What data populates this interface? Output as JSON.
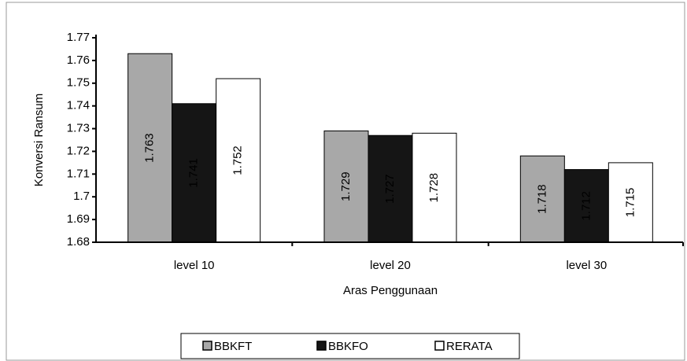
{
  "chart_data": {
    "type": "bar",
    "categories": [
      "level 10",
      "level 20",
      "level 30"
    ],
    "series": [
      {
        "name": "BBKFT",
        "color": "#a8a8a8",
        "values": [
          1.763,
          1.729,
          1.718
        ]
      },
      {
        "name": "BBKFO",
        "color": "#151515",
        "values": [
          1.741,
          1.727,
          1.712
        ]
      },
      {
        "name": "RERATA",
        "color": "#ffffff",
        "values": [
          1.752,
          1.728,
          1.715
        ]
      }
    ],
    "ylim": [
      1.68,
      1.77
    ],
    "yticks": [
      1.68,
      1.69,
      1.7,
      1.71,
      1.72,
      1.73,
      1.74,
      1.75,
      1.76,
      1.77
    ],
    "y_label": "Konversi Ransum",
    "x_label": "Aras Penggunaan",
    "legend": "bottom"
  }
}
